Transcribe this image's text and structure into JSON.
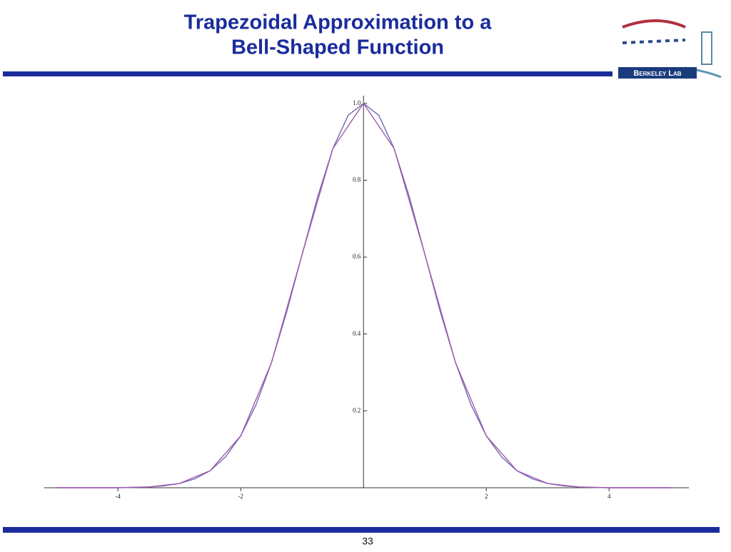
{
  "title": [
    "Trapezoidal Approximation to a",
    "Bell-Shaped Function"
  ],
  "logo": "Berkeley Lab",
  "page_number": "33",
  "chart_data": {
    "type": "line",
    "series": [
      {
        "color": "#6c6cb4",
        "x": [
          -5,
          -4.75,
          -4.5,
          -4.25,
          -4,
          -3.75,
          -3.5,
          -3.25,
          -3,
          -2.75,
          -2.5,
          -2.25,
          -2,
          -1.75,
          -1.5,
          -1.25,
          -1,
          -0.75,
          -0.5,
          -0.25,
          0,
          0.25,
          0.5,
          0.75,
          1,
          1.25,
          1.5,
          1.75,
          2,
          2.25,
          2.5,
          2.75,
          3,
          3.25,
          3.5,
          3.75,
          4,
          4.25,
          4.5,
          4.75,
          5
        ],
        "values": [
          0,
          0,
          0,
          0,
          0,
          0.001,
          0.002,
          0.005,
          0.011,
          0.023,
          0.044,
          0.08,
          0.135,
          0.216,
          0.325,
          0.458,
          0.607,
          0.755,
          0.882,
          0.969,
          1,
          0.969,
          0.882,
          0.755,
          0.607,
          0.458,
          0.325,
          0.216,
          0.135,
          0.08,
          0.044,
          0.023,
          0.011,
          0.005,
          0.002,
          0.001,
          0,
          0,
          0,
          0,
          0
        ]
      },
      {
        "color": "#a05aac",
        "x": [
          -5,
          -4.5,
          -4,
          -3.5,
          -3,
          -2.5,
          -2,
          -1.5,
          -1,
          -0.5,
          0,
          0.5,
          1,
          1.5,
          2,
          2.5,
          3,
          3.5,
          4,
          4.5,
          5
        ],
        "values": [
          0,
          0,
          0,
          0.002,
          0.011,
          0.044,
          0.135,
          0.325,
          0.607,
          0.882,
          1,
          0.882,
          0.607,
          0.325,
          0.135,
          0.044,
          0.011,
          0.002,
          0,
          0,
          0
        ]
      }
    ],
    "xlim": [
      -5.2,
      5.3
    ],
    "ylim": [
      0,
      1.02
    ],
    "xticks": [
      -4,
      -2,
      2,
      4
    ],
    "yticks": [
      0.2,
      0.4,
      0.6,
      0.8,
      {
        "value": 1,
        "label": "1.0"
      }
    ]
  }
}
